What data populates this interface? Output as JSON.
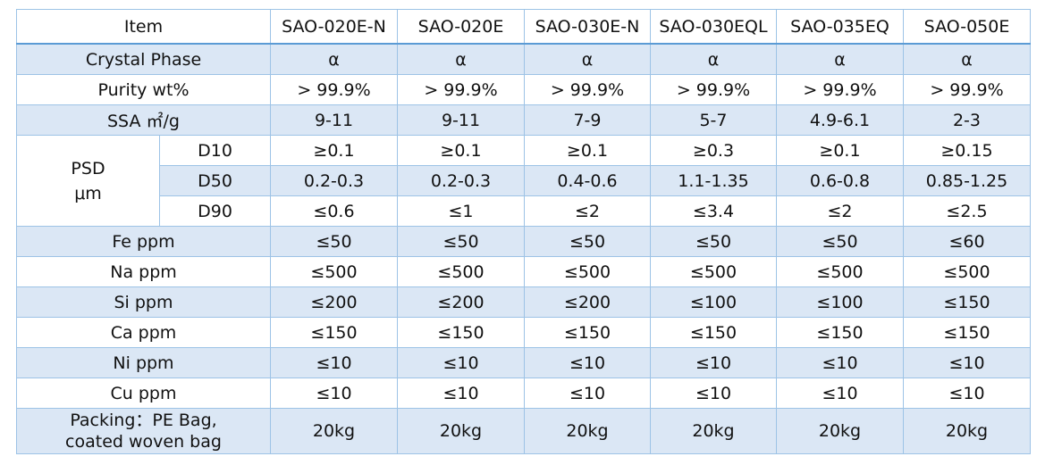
{
  "header": {
    "item": "Item",
    "products": [
      "SAO-020E-N",
      "SAO-020E",
      "SAO-030E-N",
      "SAO-030EQL",
      "SAO-035EQ",
      "SAO-050E"
    ]
  },
  "rows": {
    "crystal": {
      "label": "Crystal Phase",
      "values": [
        "α",
        "α",
        "α",
        "α",
        "α",
        "α"
      ]
    },
    "purity": {
      "label": "Purity wt%",
      "values": [
        "> 99.9%",
        "> 99.9%",
        "> 99.9%",
        "> 99.9%",
        "> 99.9%",
        "> 99.9%"
      ]
    },
    "ssa": {
      "label": "SSA ㎡/g",
      "values": [
        "9-11",
        "9-11",
        "7-9",
        "5-7",
        "4.9-6.1",
        "2-3"
      ]
    },
    "psd": {
      "label_line1": "PSD",
      "label_line2": "μm",
      "d10": {
        "label": "D10",
        "values": [
          "≥0.1",
          "≥0.1",
          "≥0.1",
          "≥0.3",
          "≥0.1",
          "≥0.15"
        ]
      },
      "d50": {
        "label": "D50",
        "values": [
          "0.2-0.3",
          "0.2-0.3",
          "0.4-0.6",
          "1.1-1.35",
          "0.6-0.8",
          "0.85-1.25"
        ]
      },
      "d90": {
        "label": "D90",
        "values": [
          "≤0.6",
          "≤1",
          "≤2",
          "≤3.4",
          "≤2",
          "≤2.5"
        ]
      }
    },
    "fe": {
      "label": "Fe ppm",
      "values": [
        "≤50",
        "≤50",
        "≤50",
        "≤50",
        "≤50",
        "≤60"
      ]
    },
    "na": {
      "label": "Na ppm",
      "values": [
        "≤500",
        "≤500",
        "≤500",
        "≤500",
        "≤500",
        "≤500"
      ]
    },
    "si": {
      "label": "Si ppm",
      "values": [
        "≤200",
        "≤200",
        "≤200",
        "≤100",
        "≤100",
        "≤150"
      ]
    },
    "ca": {
      "label": "Ca ppm",
      "values": [
        "≤150",
        "≤150",
        "≤150",
        "≤150",
        "≤150",
        "≤150"
      ]
    },
    "ni": {
      "label": "Ni ppm",
      "values": [
        "≤10",
        "≤10",
        "≤10",
        "≤10",
        "≤10",
        "≤10"
      ]
    },
    "cu": {
      "label": "Cu ppm",
      "values": [
        "≤10",
        "≤10",
        "≤10",
        "≤10",
        "≤10",
        "≤10"
      ]
    },
    "packing": {
      "label_line1": "Packing：PE Bag,",
      "label_line2": "coated woven bag",
      "values": [
        "20kg",
        "20kg",
        "20kg",
        "20kg",
        "20kg",
        "20kg"
      ]
    }
  }
}
